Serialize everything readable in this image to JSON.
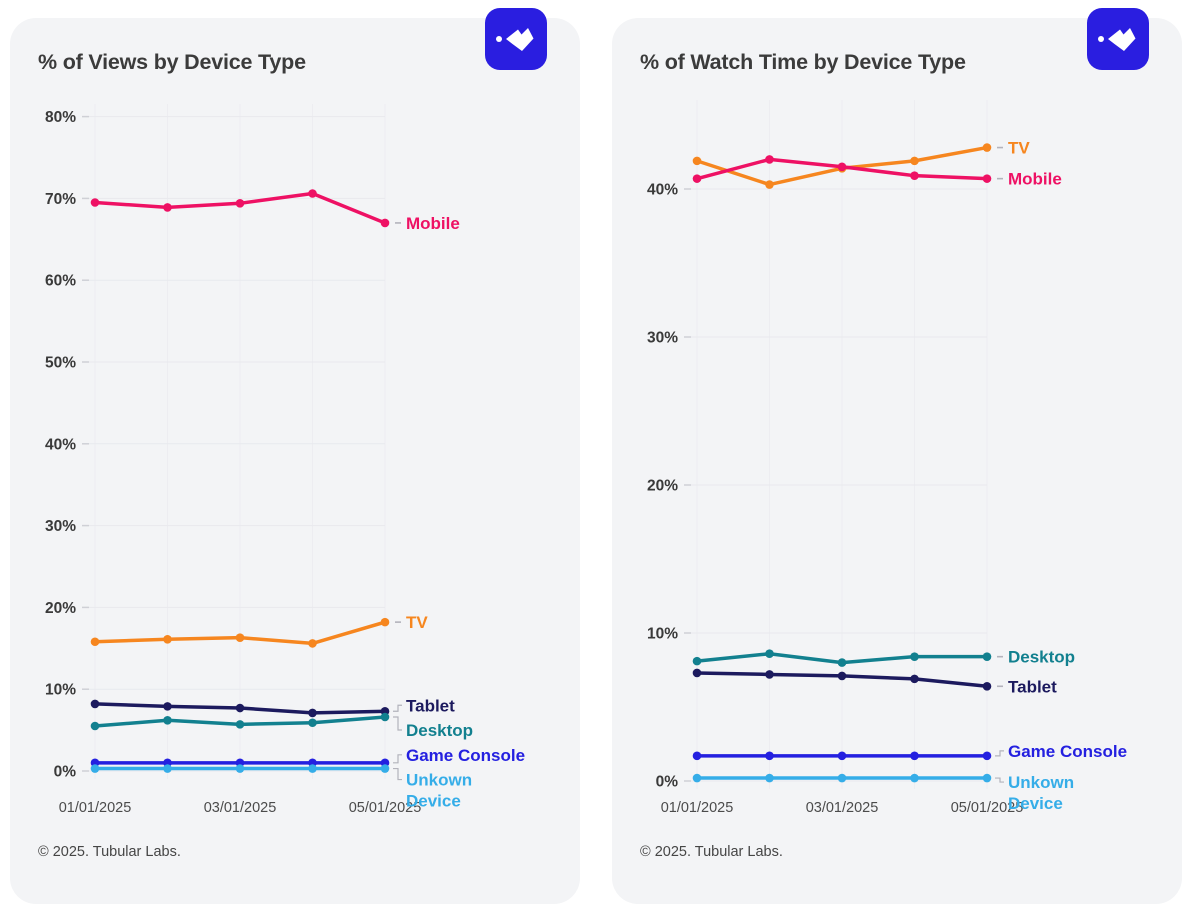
{
  "logo": {
    "background": "#2a1ee0",
    "glyph": "paper-plane"
  },
  "chart_data": [
    {
      "type": "line",
      "title": "% of Views by Device Type",
      "xlabel": "",
      "ylabel": "",
      "ylim": [
        0,
        84
      ],
      "grid": true,
      "legend_position": "right-of-line-end",
      "y_tick_labels": [
        "0%",
        "10%",
        "20%",
        "30%",
        "40%",
        "50%",
        "60%",
        "70%",
        "80%"
      ],
      "y_tick_values": [
        0,
        10,
        20,
        30,
        40,
        50,
        60,
        70,
        80
      ],
      "n_points": 5,
      "x_tick_labels": [
        "01/01/2025",
        "03/01/2025",
        "05/01/2025"
      ],
      "x_tick_positions": [
        0,
        2,
        4
      ],
      "series": [
        {
          "name": "Mobile",
          "color": "#ee1164",
          "values": [
            69.5,
            68.9,
            69.4,
            70.6,
            67.0
          ],
          "label_lines": [
            "Mobile"
          ],
          "connector": "dash",
          "label_dy": 0
        },
        {
          "name": "TV",
          "color": "#f6861f",
          "values": [
            15.8,
            16.1,
            16.3,
            15.6,
            18.2
          ],
          "label_lines": [
            "TV"
          ],
          "connector": "dash",
          "label_dy": 0
        },
        {
          "name": "Tablet",
          "color": "#1c1a5e",
          "values": [
            8.2,
            7.9,
            7.7,
            7.1,
            7.3
          ],
          "label_lines": [
            "Tablet"
          ],
          "connector": "elbow",
          "label_dy": -6
        },
        {
          "name": "Desktop",
          "color": "#12808f",
          "values": [
            5.5,
            6.2,
            5.7,
            5.9,
            6.6
          ],
          "label_lines": [
            "Desktop"
          ],
          "connector": "elbow",
          "label_dy": 13
        },
        {
          "name": "Game Console",
          "color": "#2420e0",
          "values": [
            1.0,
            1.0,
            1.0,
            1.0,
            1.0
          ],
          "label_lines": [
            "Game Console"
          ],
          "connector": "elbow",
          "label_dy": -8
        },
        {
          "name": "Unkown Device",
          "color": "#35ade8",
          "values": [
            0.3,
            0.3,
            0.3,
            0.3,
            0.3
          ],
          "label_lines": [
            "Unkown",
            "Device"
          ],
          "connector": "elbow",
          "label_dy": 11
        }
      ],
      "footer": "© 2025. Tubular Labs."
    },
    {
      "type": "line",
      "title": "% of Watch Time by Device Type",
      "xlabel": "",
      "ylabel": "",
      "ylim": [
        0,
        44.3
      ],
      "grid": true,
      "legend_position": "right-of-line-end",
      "y_tick_labels": [
        "0%",
        "10%",
        "20%",
        "30%",
        "40%"
      ],
      "y_tick_values": [
        0,
        10,
        20,
        30,
        40
      ],
      "n_points": 5,
      "x_tick_labels": [
        "01/01/2025",
        "03/01/2025",
        "05/01/2025"
      ],
      "x_tick_positions": [
        0,
        2,
        4
      ],
      "series": [
        {
          "name": "TV",
          "color": "#f6861f",
          "values": [
            41.9,
            40.3,
            41.4,
            41.9,
            42.8
          ],
          "label_lines": [
            "TV"
          ],
          "connector": "dash",
          "label_dy": 0
        },
        {
          "name": "Mobile",
          "color": "#ee1164",
          "values": [
            40.7,
            42.0,
            41.5,
            40.9,
            40.7
          ],
          "label_lines": [
            "Mobile"
          ],
          "connector": "dash",
          "label_dy": 0
        },
        {
          "name": "Desktop",
          "color": "#12808f",
          "values": [
            8.1,
            8.6,
            8.0,
            8.4,
            8.4
          ],
          "label_lines": [
            "Desktop"
          ],
          "connector": "dash",
          "label_dy": 0
        },
        {
          "name": "Tablet",
          "color": "#1c1a5e",
          "values": [
            7.3,
            7.2,
            7.1,
            6.9,
            6.4
          ],
          "label_lines": [
            "Tablet"
          ],
          "connector": "dash",
          "label_dy": 0
        },
        {
          "name": "Game Console",
          "color": "#2420e0",
          "values": [
            1.7,
            1.7,
            1.7,
            1.7,
            1.7
          ],
          "label_lines": [
            "Game Console"
          ],
          "connector": "elbow",
          "label_dy": -5
        },
        {
          "name": "Unkown Device",
          "color": "#35ade8",
          "values": [
            0.2,
            0.2,
            0.2,
            0.2,
            0.2
          ],
          "label_lines": [
            "Unkown",
            "Device"
          ],
          "connector": "elbow",
          "label_dy": 4
        }
      ],
      "footer": "© 2025. Tubular Labs."
    }
  ]
}
